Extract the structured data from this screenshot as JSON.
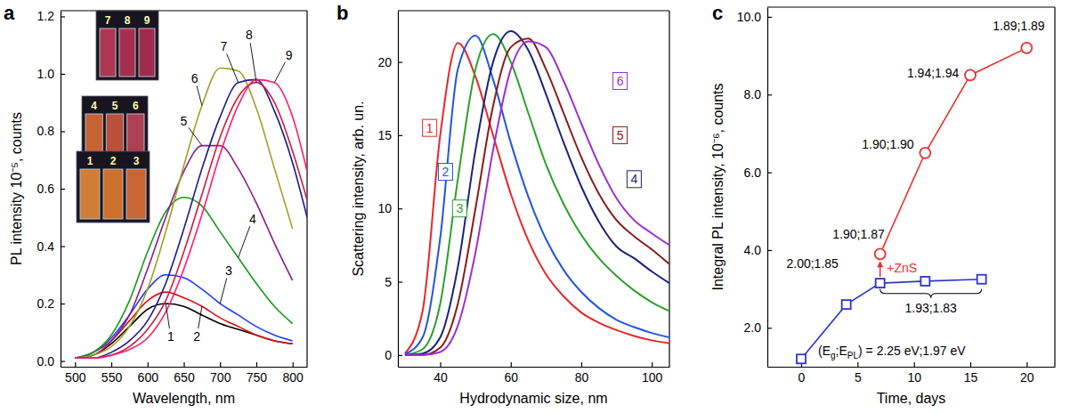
{
  "chart_data": [
    {
      "type": "line",
      "panel_label": "a",
      "x_label": "Wavelength, nm",
      "y_label": "PL intensity 10⁻⁵, counts",
      "xlim": [
        480,
        820
      ],
      "ylim": [
        -0.02,
        1.22
      ],
      "xticks": [
        500,
        550,
        600,
        650,
        700,
        750,
        800
      ],
      "yticks": [
        {
          "value": 0,
          "label": "0.0"
        },
        0.2,
        0.4,
        0.6,
        0.8,
        {
          "value": 1,
          "label": "1.0"
        },
        1.2
      ],
      "series": [
        {
          "name": "1",
          "color": "#000000",
          "x": [
            500,
            525,
            550,
            575,
            600,
            625,
            650,
            675,
            700,
            725,
            750,
            775,
            800
          ],
          "values": [
            0.01,
            0.02,
            0.06,
            0.12,
            0.18,
            0.2,
            0.19,
            0.16,
            0.13,
            0.11,
            0.09,
            0.07,
            0.06
          ]
        },
        {
          "name": "2",
          "color": "#e01010",
          "x": [
            500,
            525,
            550,
            575,
            600,
            625,
            650,
            675,
            700,
            725,
            750,
            775,
            800
          ],
          "values": [
            0.01,
            0.03,
            0.07,
            0.14,
            0.21,
            0.24,
            0.22,
            0.19,
            0.15,
            0.12,
            0.09,
            0.07,
            0.06
          ]
        },
        {
          "name": "3",
          "color": "#1f3fff",
          "x": [
            500,
            525,
            550,
            575,
            600,
            625,
            650,
            675,
            700,
            725,
            750,
            775,
            800
          ],
          "values": [
            0.01,
            0.03,
            0.08,
            0.16,
            0.25,
            0.3,
            0.29,
            0.25,
            0.2,
            0.16,
            0.12,
            0.09,
            0.07
          ]
        },
        {
          "name": "4",
          "color": "#1a9a1a",
          "x": [
            500,
            525,
            550,
            575,
            600,
            625,
            650,
            675,
            700,
            725,
            750,
            775,
            800
          ],
          "values": [
            0.01,
            0.03,
            0.09,
            0.21,
            0.38,
            0.52,
            0.57,
            0.54,
            0.45,
            0.36,
            0.27,
            0.19,
            0.13
          ]
        },
        {
          "name": "5",
          "color": "#8b1a8b",
          "x": [
            500,
            525,
            550,
            575,
            600,
            625,
            650,
            675,
            700,
            725,
            750,
            775,
            800
          ],
          "values": [
            0.01,
            0.02,
            0.07,
            0.16,
            0.32,
            0.5,
            0.66,
            0.75,
            0.75,
            0.67,
            0.55,
            0.41,
            0.28
          ]
        },
        {
          "name": "6",
          "color": "#a0a020",
          "x": [
            500,
            525,
            550,
            575,
            600,
            625,
            650,
            675,
            700,
            725,
            750,
            775,
            800
          ],
          "values": [
            0.01,
            0.02,
            0.05,
            0.12,
            0.25,
            0.45,
            0.68,
            0.89,
            1.02,
            1.01,
            0.88,
            0.67,
            0.46
          ]
        },
        {
          "name": "7",
          "color": "#1a1a8c",
          "x": [
            500,
            525,
            550,
            575,
            600,
            625,
            650,
            675,
            700,
            725,
            750,
            775,
            800,
            820
          ],
          "values": [
            0.01,
            0.01,
            0.03,
            0.07,
            0.14,
            0.27,
            0.46,
            0.67,
            0.85,
            0.97,
            0.98,
            0.87,
            0.69,
            0.5
          ]
        },
        {
          "name": "8",
          "color": "#c81e3c",
          "x": [
            500,
            525,
            550,
            575,
            600,
            625,
            650,
            675,
            700,
            725,
            750,
            775,
            800,
            820
          ],
          "values": [
            0.01,
            0.01,
            0.02,
            0.05,
            0.11,
            0.21,
            0.38,
            0.58,
            0.78,
            0.92,
            0.97,
            0.9,
            0.73,
            0.56
          ]
        },
        {
          "name": "9",
          "color": "#ff1a6e",
          "x": [
            500,
            525,
            550,
            575,
            600,
            625,
            650,
            675,
            700,
            725,
            750,
            775,
            800,
            820
          ],
          "values": [
            0.01,
            0.01,
            0.02,
            0.04,
            0.08,
            0.17,
            0.32,
            0.51,
            0.72,
            0.89,
            0.98,
            0.97,
            0.85,
            0.66
          ]
        }
      ],
      "insets": [
        [
          "1",
          "2",
          "3"
        ],
        [
          "4",
          "5",
          "6"
        ],
        [
          "7",
          "8",
          "9"
        ]
      ]
    },
    {
      "type": "line",
      "panel_label": "b",
      "x_label": "Hydrodynamic size, nm",
      "y_label": "Scattering intensity, arb. un.",
      "xlim": [
        28,
        105
      ],
      "ylim": [
        -0.8,
        23.5
      ],
      "xticks": [
        40,
        60,
        80,
        100
      ],
      "yticks": [
        0,
        5,
        10,
        15,
        20
      ],
      "x": [
        30,
        35,
        40,
        45,
        50,
        55,
        60,
        65,
        70,
        75,
        80,
        85,
        90,
        95,
        100,
        105
      ],
      "series": [
        {
          "name": "1",
          "color": "#e8262a",
          "values": [
            0.1,
            3,
            15,
            21.3,
            19,
            15,
            11,
            7.8,
            5.5,
            4,
            2.9,
            2.2,
            1.7,
            1.3,
            1.0,
            0.8
          ]
        },
        {
          "name": "2",
          "color": "#2255dd",
          "values": [
            0.05,
            1.2,
            8,
            19.5,
            21.8,
            18.8,
            14.5,
            10.8,
            7.9,
            5.8,
            4.3,
            3.2,
            2.4,
            1.9,
            1.5,
            1.2
          ]
        },
        {
          "name": "3",
          "color": "#2ca02c",
          "values": [
            0,
            0.4,
            3.5,
            12,
            19.5,
            21.9,
            20,
            16.5,
            13,
            10.3,
            8.2,
            6.6,
            5.4,
            4.4,
            3.6,
            3.0
          ]
        },
        {
          "name": "4",
          "color": "#1a237e",
          "values": [
            0,
            0.1,
            1.2,
            6,
            14,
            20,
            22.1,
            20.8,
            17.8,
            14.5,
            11.5,
            9.1,
            7.4,
            6.6,
            5.7,
            4.9
          ]
        },
        {
          "name": "5",
          "color": "#8b1a1a",
          "values": [
            0,
            0,
            0.5,
            3.5,
            10,
            17,
            21,
            21.6,
            19.5,
            16.5,
            13.5,
            11,
            9.2,
            8.1,
            7.2,
            6.2
          ]
        },
        {
          "name": "6",
          "color": "#9b30d0",
          "values": [
            0,
            0,
            0.2,
            2,
            7,
            14,
            19.5,
            21.4,
            21,
            18.7,
            15.8,
            13,
            10.7,
            9.2,
            8.3,
            7.5
          ]
        }
      ]
    },
    {
      "type": "line",
      "panel_label": "c",
      "x_label": "Time, days",
      "y_label": "Integral PL intensity, 10⁻⁶, counts",
      "xlim": [
        -3,
        22.5
      ],
      "ylim": [
        1,
        10.25
      ],
      "xticks": [
        0,
        5,
        10,
        15,
        20
      ],
      "yticks": [
        {
          "value": 2,
          "label": "2.0"
        },
        {
          "value": 4,
          "label": "4.0"
        },
        {
          "value": 6,
          "label": "6.0"
        },
        {
          "value": 8,
          "label": "8.0"
        },
        {
          "value": 10,
          "label": "10.0"
        }
      ],
      "series": [
        {
          "color": "#2b35d0",
          "marker": "square",
          "x": [
            0,
            4,
            7,
            11,
            16
          ],
          "values": [
            1.2,
            2.6,
            3.15,
            3.2,
            3.25
          ]
        },
        {
          "color": "#e8302a",
          "marker": "circle",
          "x": [
            7,
            11,
            15,
            20
          ],
          "values": [
            3.9,
            6.5,
            8.5,
            9.2
          ]
        }
      ],
      "annotations": [
        {
          "text": "2.00;1.85"
        },
        {
          "text": "1.90;1.87"
        },
        {
          "text": "+ZnS",
          "color": "#e8302a"
        },
        {
          "text": "1.90;1.90"
        },
        {
          "text": "1.94;1.94"
        },
        {
          "text": "1.89;1.89"
        },
        {
          "text": "1.93;1.83"
        },
        {
          "segments": [
            {
              "text": "(E"
            },
            {
              "text": "g",
              "sub": true
            },
            {
              "text": ";E"
            },
            {
              "text": "PL",
              "sub": true
            },
            {
              "text": ") = 2.25 eV;1.97 eV"
            }
          ]
        }
      ]
    }
  ]
}
